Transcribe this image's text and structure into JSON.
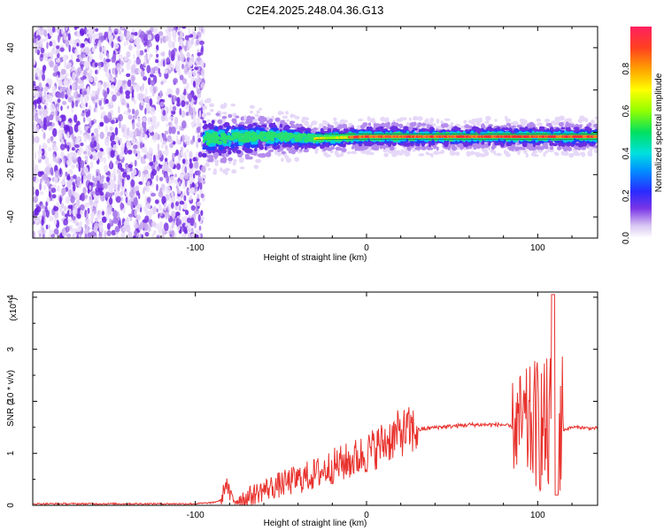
{
  "title": "C2E4.2025.248.04.36.G13",
  "chart_data": [
    {
      "type": "heatmap",
      "xlabel": "Height of straight line (km)",
      "ylabel": "Frequency (Hz)",
      "xlim": [
        -195,
        135
      ],
      "ylim": [
        -50,
        50
      ],
      "x_ticks": [
        "-100",
        "0",
        "100"
      ],
      "x_tick_values": [
        -100,
        0,
        100
      ],
      "y_ticks": [
        "-40",
        "-20",
        "0",
        "20",
        "40"
      ],
      "y_tick_values": [
        -40,
        -20,
        0,
        20,
        40
      ],
      "colorbar": {
        "label": "Normalized spectral amplitude",
        "range": [
          0,
          1
        ],
        "ticks": [
          "0.0",
          "0.2",
          "0.4",
          "0.6",
          "0.8"
        ],
        "tick_values": [
          0.0,
          0.2,
          0.4,
          0.6,
          0.8
        ],
        "colormap": "rainbow"
      },
      "regions": [
        {
          "x_range": [
            -195,
            -95
          ],
          "description": "scattered low-amplitude noise across all frequencies"
        },
        {
          "x_range": [
            -95,
            135
          ],
          "description": "signal band near 0 Hz",
          "frequency_center_approx": [
            [
              -95,
              -3
            ],
            [
              -50,
              -2
            ],
            [
              -30,
              -3
            ],
            [
              0,
              -2
            ],
            [
              100,
              -2
            ],
            [
              135,
              -2
            ]
          ]
        }
      ]
    },
    {
      "type": "line",
      "xlabel": "Height of straight line (km)",
      "ylabel": "SNR (10 * v/v)",
      "y_scale_label": "(x10",
      "y_scale_exponent": "4",
      "xlim": [
        -195,
        135
      ],
      "ylim": [
        0,
        4.1
      ],
      "x_ticks": [
        "-100",
        "0",
        "100"
      ],
      "x_tick_values": [
        -100,
        0,
        100
      ],
      "y_ticks": [
        "0",
        "1",
        "2",
        "3",
        "4"
      ],
      "y_tick_values": [
        0,
        1,
        2,
        3,
        4
      ],
      "line_color": "#e8322d",
      "series": [
        {
          "x": [
            -195,
            -150,
            -100,
            -90,
            -85,
            -82,
            -80,
            -78,
            -70,
            -60,
            -50,
            -40,
            -30,
            -20,
            -10,
            0,
            10,
            20,
            30,
            40,
            50,
            60,
            70,
            80,
            85,
            90,
            95,
            100,
            105,
            108,
            110,
            112,
            115,
            120,
            125,
            130,
            135
          ],
          "y": [
            0.03,
            0.03,
            0.03,
            0.05,
            0.1,
            0.45,
            0.2,
            0.1,
            0.15,
            0.3,
            0.4,
            0.5,
            0.6,
            0.75,
            0.85,
            1.0,
            1.2,
            1.4,
            1.45,
            1.5,
            1.52,
            1.55,
            1.55,
            1.55,
            1.5,
            1.55,
            1.5,
            1.6,
            1.4,
            1.5,
            1.6,
            1.5,
            1.45,
            1.5,
            1.5,
            1.48,
            1.48
          ]
        }
      ]
    }
  ]
}
